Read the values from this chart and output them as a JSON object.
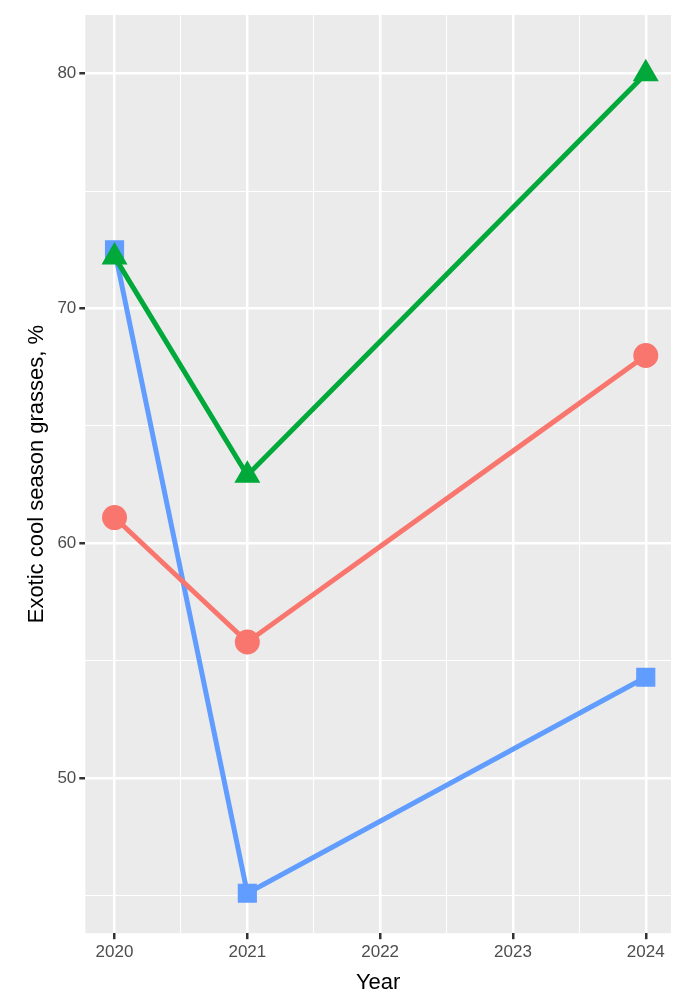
{
  "chart_data": {
    "type": "line",
    "xlabel": "Year",
    "ylabel": "Exotic cool season grasses, %",
    "x": [
      2020,
      2021,
      2024
    ],
    "series": [
      {
        "color": "#f8766d",
        "marker": "circle",
        "values": [
          61.1,
          55.8,
          68.0
        ]
      },
      {
        "color": "#00a93a",
        "marker": "triangle",
        "values": [
          72.2,
          62.9,
          80.0
        ]
      },
      {
        "color": "#619cff",
        "marker": "square",
        "values": [
          72.5,
          45.1,
          54.3
        ]
      }
    ],
    "xlim": [
      2019.78,
      2024.19
    ],
    "xticks": [
      2020,
      {
        "value": 2020.5,
        "label": null
      },
      2021,
      {
        "value": 2021.5,
        "label": null
      },
      2022,
      {
        "value": 2022.5,
        "label": null
      },
      2023,
      {
        "value": 2023.5,
        "label": null
      },
      2024
    ],
    "ylim": [
      43.4,
      82.5
    ],
    "yticks": [
      {
        "value": 45,
        "label": null
      },
      50,
      {
        "value": 55,
        "label": null
      },
      60,
      {
        "value": 65,
        "label": null
      },
      70,
      {
        "value": 75,
        "label": null
      },
      80
    ],
    "grid": true,
    "legend": false,
    "line_style": "solid"
  }
}
